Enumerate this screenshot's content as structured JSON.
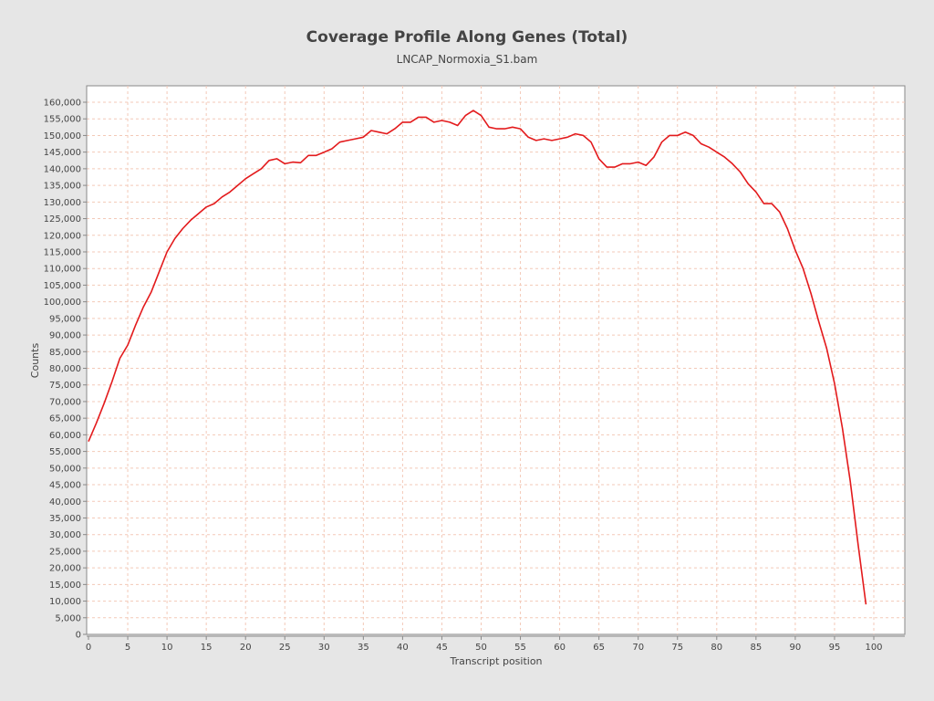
{
  "chart_data": {
    "type": "line",
    "title": "Coverage Profile Along Genes (Total)",
    "subtitle": "LNCAP_Normoxia_S1.bam",
    "xlabel": "Transcript position",
    "ylabel": "Counts",
    "xlim": [
      0,
      104
    ],
    "ylim": [
      0,
      164000
    ],
    "x_ticks": [
      0,
      5,
      10,
      15,
      20,
      25,
      30,
      35,
      40,
      45,
      50,
      55,
      60,
      65,
      70,
      75,
      80,
      85,
      90,
      95,
      100
    ],
    "y_ticks": [
      0,
      5000,
      10000,
      15000,
      20000,
      25000,
      30000,
      35000,
      40000,
      45000,
      50000,
      55000,
      60000,
      65000,
      70000,
      75000,
      80000,
      85000,
      90000,
      95000,
      100000,
      105000,
      110000,
      115000,
      120000,
      125000,
      130000,
      135000,
      140000,
      145000,
      150000,
      155000,
      160000
    ],
    "grid": true,
    "series": [
      {
        "color": "#e31a1c",
        "x": [
          0,
          1,
          2,
          3,
          4,
          5,
          6,
          7,
          8,
          9,
          10,
          11,
          12,
          13,
          14,
          15,
          16,
          17,
          18,
          19,
          20,
          21,
          22,
          23,
          24,
          25,
          26,
          27,
          28,
          29,
          30,
          31,
          32,
          33,
          34,
          35,
          36,
          37,
          38,
          39,
          40,
          41,
          42,
          43,
          44,
          45,
          46,
          47,
          48,
          49,
          50,
          51,
          52,
          53,
          54,
          55,
          56,
          57,
          58,
          59,
          60,
          61,
          62,
          63,
          64,
          65,
          66,
          67,
          68,
          69,
          70,
          71,
          72,
          73,
          74,
          75,
          76,
          77,
          78,
          79,
          80,
          81,
          82,
          83,
          84,
          85,
          86,
          87,
          88,
          89,
          90,
          91,
          92,
          93,
          94,
          95,
          96,
          97,
          98,
          99
        ],
        "values": [
          58000,
          63500,
          69500,
          76000,
          83000,
          87000,
          93000,
          98500,
          103000,
          109000,
          115000,
          119000,
          122000,
          124500,
          126500,
          128500,
          129500,
          131500,
          133000,
          135000,
          137000,
          138500,
          140000,
          142500,
          143000,
          141500,
          142000,
          141800,
          144000,
          144000,
          145000,
          146000,
          148000,
          148500,
          149000,
          149500,
          151500,
          151000,
          150500,
          152000,
          154000,
          154000,
          155500,
          155500,
          154000,
          154500,
          154000,
          153000,
          156000,
          157500,
          156000,
          152500,
          152000,
          152000,
          152500,
          152000,
          149500,
          148500,
          149000,
          148500,
          149000,
          149500,
          150500,
          150000,
          148000,
          143000,
          140500,
          140500,
          141500,
          141500,
          142000,
          141000,
          143500,
          148000,
          150000,
          150000,
          151000,
          150000,
          147500,
          146500,
          145000,
          143500,
          141500,
          139000,
          135500,
          133000,
          129500,
          129500,
          127000,
          122000,
          115500,
          110000,
          102500,
          94000,
          86000,
          75500,
          62000,
          46000,
          27000,
          9000
        ]
      }
    ]
  }
}
